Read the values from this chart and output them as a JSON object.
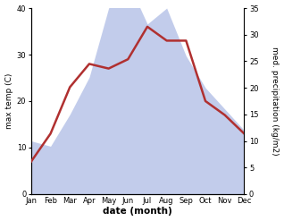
{
  "months": [
    "Jan",
    "Feb",
    "Mar",
    "Apr",
    "May",
    "Jun",
    "Jul",
    "Aug",
    "Sep",
    "Oct",
    "Nov",
    "Dec"
  ],
  "temperature": [
    7,
    13,
    23,
    28,
    27,
    29,
    36,
    33,
    33,
    20,
    17,
    13
  ],
  "precipitation": [
    10,
    9,
    15,
    22,
    35,
    40,
    32,
    35,
    26,
    20,
    16,
    12
  ],
  "temp_color": "#b03030",
  "precip_fill_color": "#b8c4e8",
  "left_ylim": [
    0,
    40
  ],
  "right_ylim": [
    0,
    35
  ],
  "left_yticks": [
    0,
    10,
    20,
    30,
    40
  ],
  "right_yticks": [
    0,
    5,
    10,
    15,
    20,
    25,
    30,
    35
  ],
  "left_ylabel": "max temp (C)",
  "right_ylabel": "med. precipitation (kg/m2)",
  "xlabel": "date (month)",
  "bg_color": "#ffffff"
}
